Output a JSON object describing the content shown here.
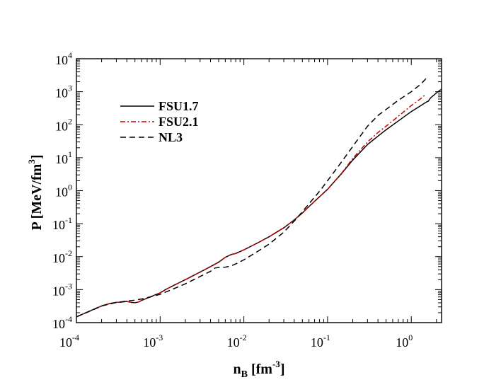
{
  "chart_data": {
    "type": "line",
    "title": "",
    "xlabel": {
      "main": "n",
      "sub": "B",
      "unit_open": " [fm",
      "unit_exp": "-3",
      "unit_close": "]"
    },
    "ylabel": {
      "main": "P [MeV/fm",
      "exp": "3",
      "close": "]"
    },
    "xscale": "log",
    "yscale": "log",
    "xlim": [
      0.0001,
      2.3
    ],
    "ylim": [
      0.0001,
      10000
    ],
    "x_ticks": [
      {
        "value": 0.0001,
        "base": "10",
        "exp": "-4"
      },
      {
        "value": 0.001,
        "base": "10",
        "exp": "-3"
      },
      {
        "value": 0.01,
        "base": "10",
        "exp": "-2"
      },
      {
        "value": 0.1,
        "base": "10",
        "exp": "-1"
      },
      {
        "value": 1,
        "base": "10",
        "exp": "0"
      }
    ],
    "y_ticks": [
      {
        "value": 0.0001,
        "base": "10",
        "exp": "-4"
      },
      {
        "value": 0.001,
        "base": "10",
        "exp": "-3"
      },
      {
        "value": 0.01,
        "base": "10",
        "exp": "-2"
      },
      {
        "value": 0.1,
        "base": "10",
        "exp": "-1"
      },
      {
        "value": 1,
        "base": "10",
        "exp": "0"
      },
      {
        "value": 10,
        "base": "10",
        "exp": "1"
      },
      {
        "value": 100,
        "base": "10",
        "exp": "2"
      },
      {
        "value": 1000,
        "base": "10",
        "exp": "3"
      },
      {
        "value": 10000,
        "base": "10",
        "exp": "4"
      }
    ],
    "legend_position": "top-left",
    "grid": false,
    "series": [
      {
        "name": "FSU1.7",
        "color": "#000000",
        "dash": "solid",
        "points": [
          [
            0.0001,
            0.00015
          ],
          [
            0.00013,
            0.0002
          ],
          [
            0.00017,
            0.00027
          ],
          [
            0.0002,
            0.00032
          ],
          [
            0.00025,
            0.00038
          ],
          [
            0.0003,
            0.00041
          ],
          [
            0.00035,
            0.00042
          ],
          [
            0.0004,
            0.00044
          ],
          [
            0.00045,
            0.00041
          ],
          [
            0.0005,
            0.0004
          ],
          [
            0.00055,
            0.00042
          ],
          [
            0.0006,
            0.00047
          ],
          [
            0.0007,
            0.00055
          ],
          [
            0.0008,
            0.00063
          ],
          [
            0.0009,
            0.00072
          ],
          [
            0.001,
            0.0008
          ],
          [
            0.0012,
            0.00105
          ],
          [
            0.0015,
            0.0014
          ],
          [
            0.002,
            0.002
          ],
          [
            0.003,
            0.0034
          ],
          [
            0.004,
            0.005
          ],
          [
            0.005,
            0.0068
          ],
          [
            0.006,
            0.0095
          ],
          [
            0.007,
            0.0115
          ],
          [
            0.008,
            0.0125
          ],
          [
            0.01,
            0.016
          ],
          [
            0.015,
            0.027
          ],
          [
            0.02,
            0.04
          ],
          [
            0.03,
            0.075
          ],
          [
            0.04,
            0.13
          ],
          [
            0.05,
            0.21
          ],
          [
            0.06,
            0.33
          ],
          [
            0.08,
            0.65
          ],
          [
            0.1,
            1.1
          ],
          [
            0.15,
            3.5
          ],
          [
            0.2,
            8.5
          ],
          [
            0.3,
            25
          ],
          [
            0.4,
            45
          ],
          [
            0.5,
            70
          ],
          [
            0.7,
            130
          ],
          [
            1.0,
            250
          ],
          [
            1.3,
            380
          ],
          [
            1.5,
            480
          ],
          [
            1.6,
            520
          ],
          [
            1.7,
            650
          ],
          [
            2.0,
            920
          ],
          [
            2.3,
            1200
          ]
        ]
      },
      {
        "name": "FSU2.1",
        "color": "#cc0000",
        "dash": "dashdot",
        "points": [
          [
            0.0001,
            0.00015
          ],
          [
            0.00013,
            0.0002
          ],
          [
            0.00017,
            0.00027
          ],
          [
            0.0002,
            0.00032
          ],
          [
            0.00025,
            0.00038
          ],
          [
            0.0003,
            0.00041
          ],
          [
            0.00035,
            0.00042
          ],
          [
            0.0004,
            0.00044
          ],
          [
            0.00045,
            0.00041
          ],
          [
            0.0005,
            0.0004
          ],
          [
            0.00055,
            0.00042
          ],
          [
            0.0006,
            0.00047
          ],
          [
            0.0007,
            0.00055
          ],
          [
            0.0008,
            0.00063
          ],
          [
            0.0009,
            0.00072
          ],
          [
            0.001,
            0.0008
          ],
          [
            0.0012,
            0.00105
          ],
          [
            0.0015,
            0.0014
          ],
          [
            0.002,
            0.002
          ],
          [
            0.003,
            0.0034
          ],
          [
            0.004,
            0.005
          ],
          [
            0.005,
            0.0068
          ],
          [
            0.006,
            0.0095
          ],
          [
            0.007,
            0.0115
          ],
          [
            0.008,
            0.0125
          ],
          [
            0.01,
            0.016
          ],
          [
            0.015,
            0.027
          ],
          [
            0.02,
            0.04
          ],
          [
            0.03,
            0.075
          ],
          [
            0.04,
            0.13
          ],
          [
            0.05,
            0.21
          ],
          [
            0.06,
            0.33
          ],
          [
            0.08,
            0.65
          ],
          [
            0.1,
            1.1
          ],
          [
            0.15,
            3.6
          ],
          [
            0.2,
            9.5
          ],
          [
            0.3,
            30
          ],
          [
            0.4,
            58
          ],
          [
            0.5,
            90
          ],
          [
            0.7,
            180
          ],
          [
            1.0,
            380
          ],
          [
            1.3,
            620
          ],
          [
            1.5,
            850
          ]
        ]
      },
      {
        "name": "NL3",
        "color": "#000000",
        "dash": "dashed",
        "points": [
          [
            0.0001,
            0.00015
          ],
          [
            0.00015,
            0.00023
          ],
          [
            0.0002,
            0.00032
          ],
          [
            0.0003,
            0.00041
          ],
          [
            0.0004,
            0.00045
          ],
          [
            0.0005,
            0.00048
          ],
          [
            0.0006,
            0.00052
          ],
          [
            0.0008,
            0.00062
          ],
          [
            0.001,
            0.00072
          ],
          [
            0.0015,
            0.0011
          ],
          [
            0.002,
            0.0015
          ],
          [
            0.003,
            0.0025
          ],
          [
            0.004,
            0.0036
          ],
          [
            0.0045,
            0.0045
          ],
          [
            0.005,
            0.0047
          ],
          [
            0.006,
            0.0048
          ],
          [
            0.007,
            0.0052
          ],
          [
            0.008,
            0.006
          ],
          [
            0.01,
            0.008
          ],
          [
            0.015,
            0.015
          ],
          [
            0.02,
            0.024
          ],
          [
            0.03,
            0.055
          ],
          [
            0.04,
            0.12
          ],
          [
            0.05,
            0.23
          ],
          [
            0.06,
            0.4
          ],
          [
            0.08,
            0.95
          ],
          [
            0.1,
            2.0
          ],
          [
            0.15,
            8
          ],
          [
            0.2,
            22
          ],
          [
            0.3,
            90
          ],
          [
            0.4,
            190
          ],
          [
            0.5,
            290
          ],
          [
            0.7,
            550
          ],
          [
            1.0,
            1000
          ],
          [
            1.3,
            1700
          ],
          [
            1.5,
            2500
          ]
        ]
      }
    ]
  }
}
